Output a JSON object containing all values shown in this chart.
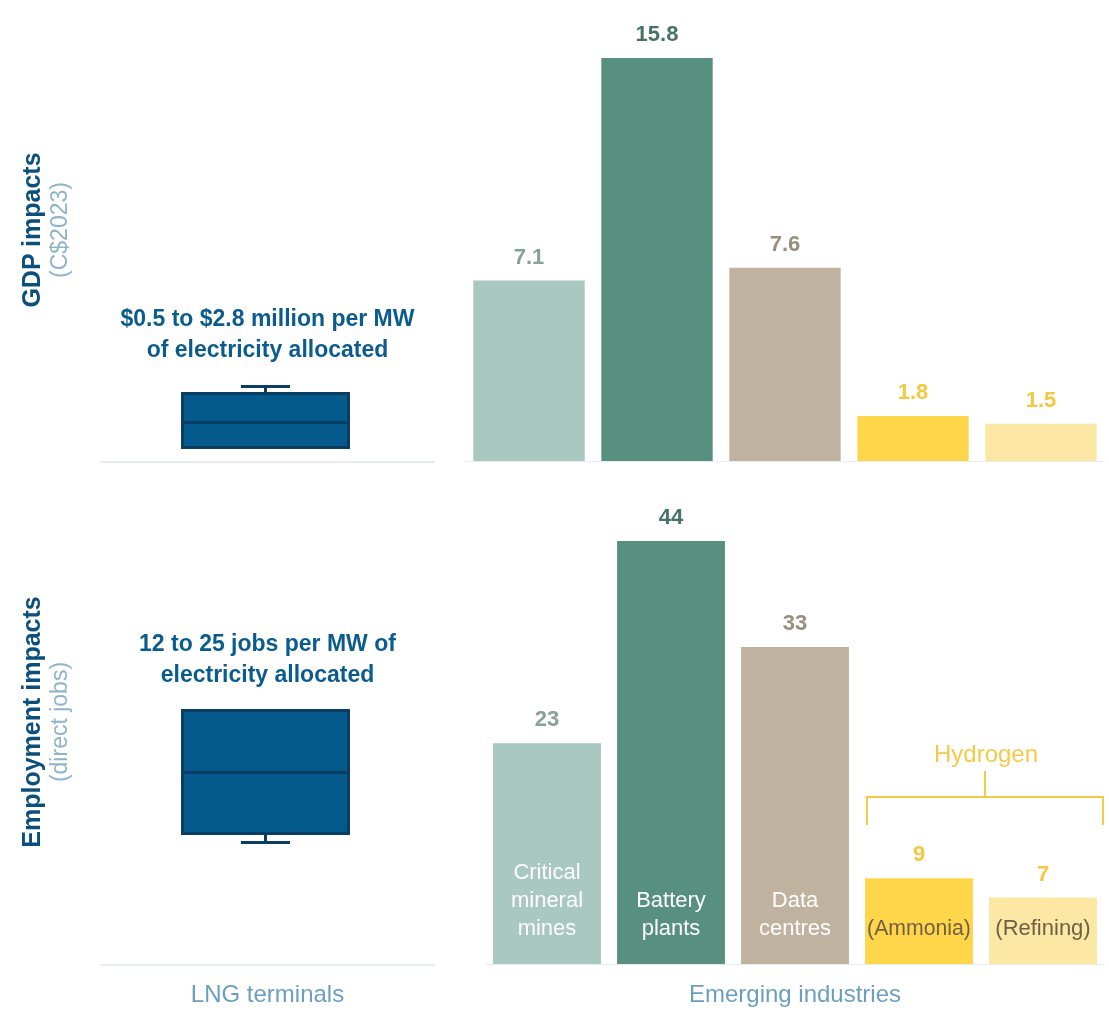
{
  "chart_data": [
    {
      "type": "other",
      "ylabel": "GDP impacts (C$2023)",
      "title": "$0.5 to $2.8 million per MW of electricity allocated"
    },
    {
      "type": "bar",
      "categories": [
        null,
        null,
        null,
        null,
        null
      ],
      "values": [
        7.1,
        15.8,
        7.6,
        1.8,
        1.5
      ],
      "colors": [
        "#a9c8bf",
        "#57907f",
        "#bfb3a0",
        "#ffd54a",
        "#fde7a5"
      ],
      "data_labels": true,
      "tick_labels": false
    },
    {
      "type": "other",
      "ylabel": "Employment impacts (direct jobs)",
      "title": "12 to 25 jobs per MW of electricity allocated",
      "xlabel": "LNG terminals"
    },
    {
      "type": "bar",
      "xlabel": "Emerging industries",
      "annotations": [
        "Hydrogen"
      ],
      "categories": [
        "Critical mineral mines",
        "Battery plants",
        "Data centres",
        "(Ammonia)",
        "(Refining)"
      ],
      "values": [
        23,
        44,
        33,
        9,
        7
      ],
      "colors": [
        "#a9c8bf",
        "#57907f",
        "#bfb3a0",
        "#ffd54a",
        "#fde7a5"
      ],
      "data_labels": true,
      "tick_labels": false
    }
  ]
}
